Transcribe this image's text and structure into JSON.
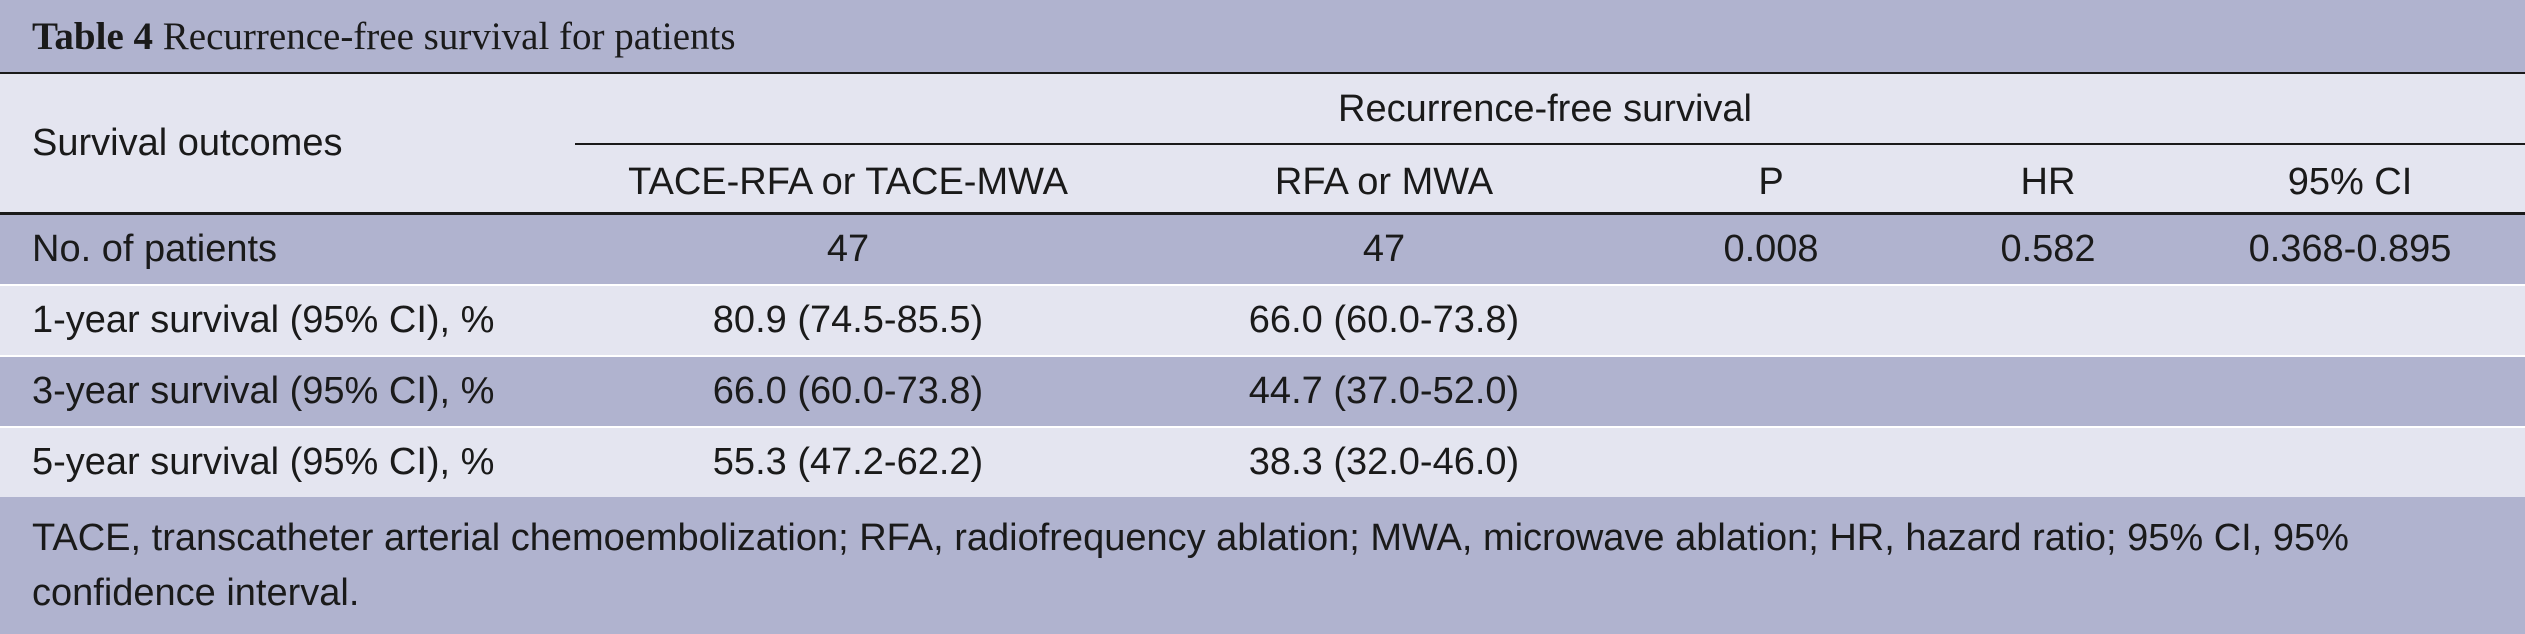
{
  "caption": {
    "label": "Table 4",
    "title": "Recurrence-free survival for patients"
  },
  "header": {
    "first_col": "Survival outcomes",
    "group": "Recurrence-free survival",
    "columns": [
      "TACE-RFA or TACE-MWA",
      "RFA or MWA",
      "P",
      "HR",
      "95% CI"
    ]
  },
  "rows": [
    {
      "label": "No. of patients",
      "cells": [
        "47",
        "47",
        "0.008",
        "0.582",
        "0.368-0.895"
      ]
    },
    {
      "label": "1-year survival (95% CI), %",
      "cells": [
        "80.9 (74.5-85.5)",
        "66.0 (60.0-73.8)",
        "",
        "",
        ""
      ]
    },
    {
      "label": "3-year survival (95% CI), %",
      "cells": [
        "66.0 (60.0-73.8)",
        "44.7 (37.0-52.0)",
        "",
        "",
        ""
      ]
    },
    {
      "label": "5-year survival (95% CI), %",
      "cells": [
        "55.3 (47.2-62.2)",
        "38.3 (32.0-46.0)",
        "",
        "",
        ""
      ]
    }
  ],
  "footnote": "TACE, transcatheter arterial chemoembolization; RFA, radiofrequency ablation; MWA, microwave ablation; HR, hazard ratio; 95% CI, 95% confidence interval.",
  "colors": {
    "dark_band": "#b0b3cf",
    "light_band": "#e4e5f0",
    "rule": "#1a1a1a"
  }
}
